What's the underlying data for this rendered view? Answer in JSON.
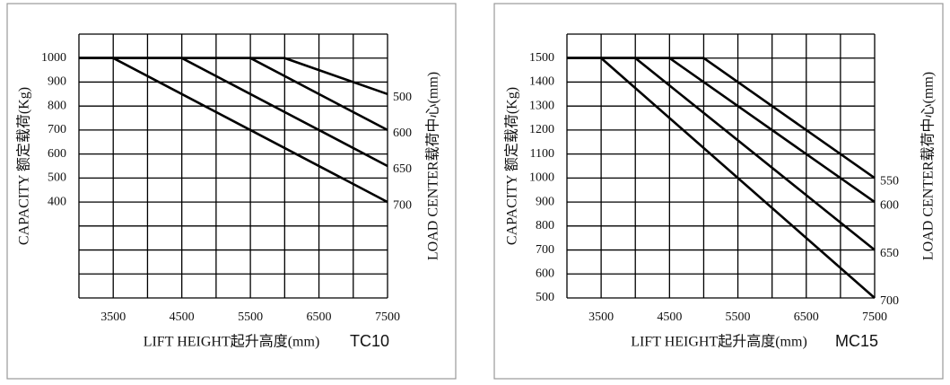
{
  "chart_data": [
    {
      "type": "line",
      "model": "TC10",
      "ylabel": "CAPACITY 额定载荷(Kg)",
      "xlabel": "LIFT HEIGHT起升高度(mm)",
      "legend_title": "LOAD CENTER载荷中心(mm)",
      "xlim": [
        3000,
        7500
      ],
      "ylim": [
        0,
        1100
      ],
      "xticks": [
        3500,
        4500,
        5500,
        6500,
        7500
      ],
      "yticks": [
        400,
        500,
        600,
        700,
        800,
        900,
        1000
      ],
      "xgrid": [
        3000,
        3500,
        4000,
        4500,
        5000,
        5500,
        6000,
        6500,
        7000,
        7500
      ],
      "ygrid": [
        0,
        100,
        200,
        300,
        400,
        500,
        600,
        700,
        800,
        900,
        1000,
        1100
      ],
      "series": [
        {
          "name": "500",
          "color": "#000000",
          "x": [
            3000,
            6000,
            7500
          ],
          "values": [
            1000,
            1000,
            850
          ]
        },
        {
          "name": "600",
          "color": "#000000",
          "x": [
            3000,
            5500,
            7500
          ],
          "values": [
            1000,
            1000,
            700
          ]
        },
        {
          "name": "650",
          "color": "#000000",
          "x": [
            3000,
            4500,
            7500
          ],
          "values": [
            1000,
            1000,
            550
          ]
        },
        {
          "name": "700",
          "color": "#000000",
          "x": [
            3000,
            3500,
            7500
          ],
          "values": [
            1000,
            1000,
            400
          ]
        }
      ]
    },
    {
      "type": "line",
      "model": "MC15",
      "ylabel": "CAPACITY 额定载荷(Kg)",
      "xlabel": "LIFT HEIGHT起升高度(mm)",
      "legend_title": "LOAD CENTER载荷中心(mm)",
      "xlim": [
        3000,
        7500
      ],
      "ylim": [
        500,
        1600
      ],
      "xticks": [
        3500,
        4500,
        5500,
        6500,
        7500
      ],
      "yticks": [
        500,
        600,
        700,
        800,
        900,
        1000,
        1100,
        1200,
        1300,
        1400,
        1500
      ],
      "xgrid": [
        3000,
        3500,
        4000,
        4500,
        5000,
        5500,
        6000,
        6500,
        7000,
        7500
      ],
      "ygrid": [
        500,
        600,
        700,
        800,
        900,
        1000,
        1100,
        1200,
        1300,
        1400,
        1500,
        1600
      ],
      "series": [
        {
          "name": "550",
          "color": "#000000",
          "x": [
            3000,
            5000,
            7500
          ],
          "values": [
            1500,
            1500,
            1000
          ]
        },
        {
          "name": "600",
          "color": "#000000",
          "x": [
            3000,
            4500,
            7500
          ],
          "values": [
            1500,
            1500,
            900
          ]
        },
        {
          "name": "650",
          "color": "#000000",
          "x": [
            3000,
            4000,
            7500
          ],
          "values": [
            1500,
            1500,
            700
          ]
        },
        {
          "name": "700",
          "color": "#000000",
          "x": [
            3000,
            3500,
            7500
          ],
          "values": [
            1500,
            1500,
            500
          ]
        }
      ]
    }
  ]
}
